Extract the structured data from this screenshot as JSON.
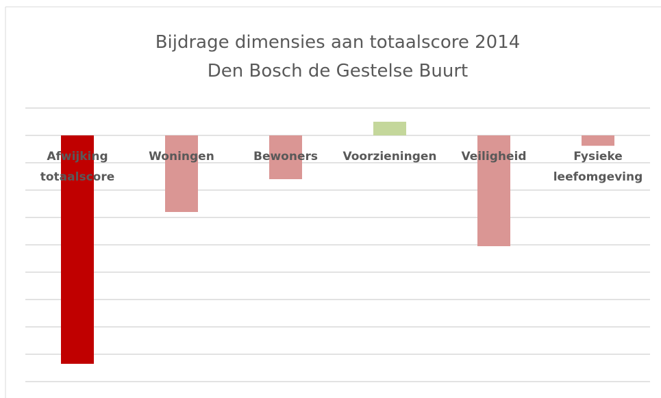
{
  "chart_data": {
    "type": "bar",
    "title": "Bijdrage dimensies aan totaalscore 2014",
    "subtitle": "Den Bosch de Gestelse Buurt",
    "categories": [
      "Afwijking totaalscore",
      "Woningen",
      "Bewoners",
      "Voorzieningen",
      "Veiligheid",
      "Fysieke leefomgeving"
    ],
    "values": [
      -8.35,
      -2.8,
      -1.6,
      0.5,
      -4.05,
      -0.38
    ],
    "colors": [
      "#c00000",
      "#da9694",
      "#da9694",
      "#c4d79b",
      "#da9694",
      "#da9694"
    ],
    "ylim": [
      -9,
      1
    ],
    "yticks": [
      -9,
      -8,
      -7,
      -6,
      -5,
      -4,
      -3,
      -2,
      -1,
      0,
      1
    ],
    "grid": true
  }
}
